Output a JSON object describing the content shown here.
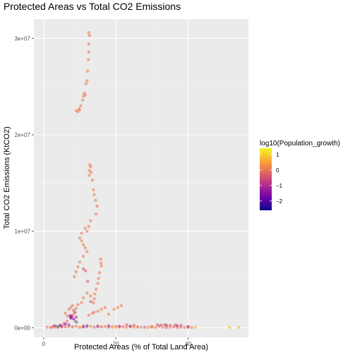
{
  "chart_data": {
    "type": "scatter",
    "title": "Protected Areas vs Total CO2 Emissions",
    "xlabel": "Protected Areas (% of Total Land Area)",
    "ylabel": "Total CO2 Emissions (KtCO2)",
    "xlim": [
      -2.7,
      56.7
    ],
    "ylim": [
      -1000000,
      32000000
    ],
    "x_ticks": [
      0,
      20,
      40
    ],
    "y_ticks": [
      0,
      10000000,
      20000000,
      30000000
    ],
    "x_tick_labels": [
      "0",
      "20",
      "40"
    ],
    "y_tick_labels": [
      "0e+00",
      "1e+07",
      "2e+07",
      "3e+07"
    ],
    "grid": true,
    "legend": {
      "title": "log10(Population_growth)",
      "placement": "right",
      "range": [
        -2.6,
        1.4
      ],
      "ticks": [
        1,
        0,
        -1,
        -2
      ],
      "tick_labels": [
        "1",
        "0",
        "−1",
        "−2"
      ],
      "colormap": [
        "#0d0887",
        "#6a00a8",
        "#b12a90",
        "#e16462",
        "#fca636",
        "#f0f921"
      ]
    },
    "series": [
      {
        "color_value": 0.1,
        "points": [
          [
            9.0,
            22500000
          ],
          [
            9.5,
            22400000
          ],
          [
            9.8,
            22700000
          ],
          [
            10.0,
            22600000
          ],
          [
            10.3,
            23000000
          ],
          [
            10.8,
            23600000
          ],
          [
            11.0,
            24000000
          ],
          [
            11.3,
            24300000
          ],
          [
            11.5,
            24100000
          ],
          [
            11.7,
            25300000
          ],
          [
            12.0,
            25600000
          ],
          [
            12.2,
            26600000
          ],
          [
            12.4,
            27800000
          ],
          [
            12.5,
            28600000
          ],
          [
            12.5,
            29400000
          ],
          [
            12.7,
            30300000
          ],
          [
            12.5,
            30600000
          ],
          [
            12.6,
            15800000
          ],
          [
            12.7,
            16300000
          ],
          [
            12.8,
            16900000
          ],
          [
            13.0,
            16700000
          ],
          [
            13.1,
            16100000
          ],
          [
            13.5,
            15300000
          ],
          [
            13.8,
            14300000
          ],
          [
            14.0,
            13800000
          ],
          [
            14.4,
            13200000
          ],
          [
            14.8,
            12600000
          ],
          [
            14.5,
            11800000
          ],
          [
            13.0,
            11100000
          ],
          [
            12.5,
            10500000
          ],
          [
            12.0,
            10000000
          ],
          [
            11.5,
            10300000
          ],
          [
            10.5,
            9800000
          ],
          [
            10.0,
            9300000
          ],
          [
            10.5,
            9000000
          ],
          [
            11.0,
            8600000
          ],
          [
            11.5,
            8300000
          ],
          [
            12.0,
            7900000
          ],
          [
            11.0,
            7400000
          ],
          [
            10.0,
            6800000
          ],
          [
            9.5,
            6300000
          ],
          [
            9.0,
            5800000
          ],
          [
            8.5,
            5300000
          ],
          [
            15.8,
            7100000
          ],
          [
            15.9,
            6700000
          ],
          [
            16.0,
            6400000
          ],
          [
            15.5,
            5700000
          ],
          [
            15.2,
            5100000
          ],
          [
            15.0,
            4600000
          ],
          [
            14.5,
            4000000
          ],
          [
            14.2,
            3500000
          ],
          [
            14.0,
            3000000
          ],
          [
            13.8,
            2600000
          ],
          [
            13.0,
            3300000
          ],
          [
            12.0,
            3600000
          ],
          [
            11.0,
            3100000
          ],
          [
            10.5,
            2600000
          ],
          [
            9.5,
            2400000
          ],
          [
            9.0,
            2000000
          ],
          [
            8.5,
            1500000
          ],
          [
            8.0,
            1300000
          ],
          [
            7.5,
            1100000
          ],
          [
            6.5,
            700000
          ],
          [
            5.5,
            400000
          ],
          [
            2.5,
            100000
          ],
          [
            1.0,
            50000
          ],
          [
            3.0,
            60000
          ],
          [
            5.0,
            80000
          ],
          [
            7.0,
            120000
          ],
          [
            9.0,
            150000
          ],
          [
            11.0,
            180000
          ],
          [
            13.0,
            140000
          ],
          [
            15.0,
            200000
          ],
          [
            17.0,
            120000
          ],
          [
            19.0,
            80000
          ],
          [
            21.0,
            70000
          ],
          [
            23.0,
            60000
          ],
          [
            25.0,
            90000
          ],
          [
            27.0,
            50000
          ],
          [
            29.0,
            40000
          ],
          [
            31.0,
            30000
          ],
          [
            33.0,
            60000
          ],
          [
            35.0,
            40000
          ],
          [
            37.0,
            30000
          ],
          [
            39.0,
            50000
          ],
          [
            41.0,
            30000
          ],
          [
            18.0,
            1400000
          ],
          [
            19.5,
            1900000
          ],
          [
            20.5,
            2100000
          ],
          [
            21.5,
            2300000
          ],
          [
            6.0,
            1500000
          ],
          [
            6.5,
            1200000
          ],
          [
            7.0,
            1900000
          ],
          [
            7.5,
            2100000
          ],
          [
            8.0,
            2300000
          ],
          [
            12.5,
            1300000
          ],
          [
            13.5,
            1500000
          ],
          [
            14.0,
            1600000
          ],
          [
            15.0,
            1700000
          ],
          [
            16.0,
            1900000
          ],
          [
            17.0,
            2100000
          ]
        ]
      },
      {
        "color_value": -0.3,
        "points": [
          [
            11.0,
            6100000
          ],
          [
            11.6,
            5900000
          ],
          [
            12.2,
            4800000
          ],
          [
            8.3,
            1800000
          ],
          [
            8.7,
            1600000
          ],
          [
            13.0,
            2700000
          ],
          [
            22.0,
            100000
          ],
          [
            24.0,
            120000
          ],
          [
            26.0,
            80000
          ],
          [
            28.0,
            60000
          ],
          [
            30.0,
            90000
          ],
          [
            32.0,
            150000
          ],
          [
            34.0,
            30000
          ],
          [
            36.0,
            100000
          ],
          [
            38.0,
            70000
          ],
          [
            40.0,
            40000
          ],
          [
            2.0,
            30000
          ],
          [
            4.0,
            50000
          ],
          [
            6.0,
            100000
          ],
          [
            8.0,
            90000
          ],
          [
            10.0,
            40000
          ],
          [
            14.0,
            60000
          ],
          [
            16.0,
            90000
          ],
          [
            18.0,
            50000
          ],
          [
            20.0,
            120000
          ],
          [
            23.0,
            300000
          ],
          [
            25.0,
            250000
          ],
          [
            31.5,
            300000
          ],
          [
            32.5,
            280000
          ],
          [
            33.5,
            320000
          ],
          [
            35.0,
            250000
          ],
          [
            36.5,
            280000
          ],
          [
            38.0,
            260000
          ]
        ]
      },
      {
        "color_value": -0.9,
        "points": [
          [
            7.5,
            1000000
          ],
          [
            7.8,
            1200000
          ],
          [
            9.0,
            1100000
          ],
          [
            3.0,
            200000
          ],
          [
            5.0,
            150000
          ],
          [
            7.0,
            300000
          ],
          [
            12.0,
            200000
          ],
          [
            15.0,
            100000
          ],
          [
            18.0,
            200000
          ],
          [
            21.0,
            150000
          ],
          [
            24.0,
            150000
          ],
          [
            30.0,
            100000
          ],
          [
            34.0,
            250000
          ],
          [
            37.0,
            200000
          ],
          [
            40.0,
            120000
          ]
        ]
      },
      {
        "color_value": -1.4,
        "points": [
          [
            7.3,
            1250000
          ],
          [
            7.6,
            1050000
          ],
          [
            8.3,
            900000
          ],
          [
            4.5,
            250000
          ],
          [
            6.0,
            400000
          ],
          [
            11.0,
            80000
          ]
        ]
      },
      {
        "color_value": 0.7,
        "points": [
          [
            25.0,
            50000
          ],
          [
            30.0,
            70000
          ],
          [
            51.5,
            30000
          ],
          [
            54.0,
            50000
          ],
          [
            42.0,
            40000
          ],
          [
            20.0,
            40000
          ],
          [
            10.0,
            30000
          ]
        ]
      }
    ],
    "neutral_points": [
      [
        8.8,
        650000
      ],
      [
        9.2,
        580000
      ],
      [
        3.5,
        150000
      ],
      [
        4.0,
        100000
      ],
      [
        12.0,
        100000
      ]
    ]
  }
}
